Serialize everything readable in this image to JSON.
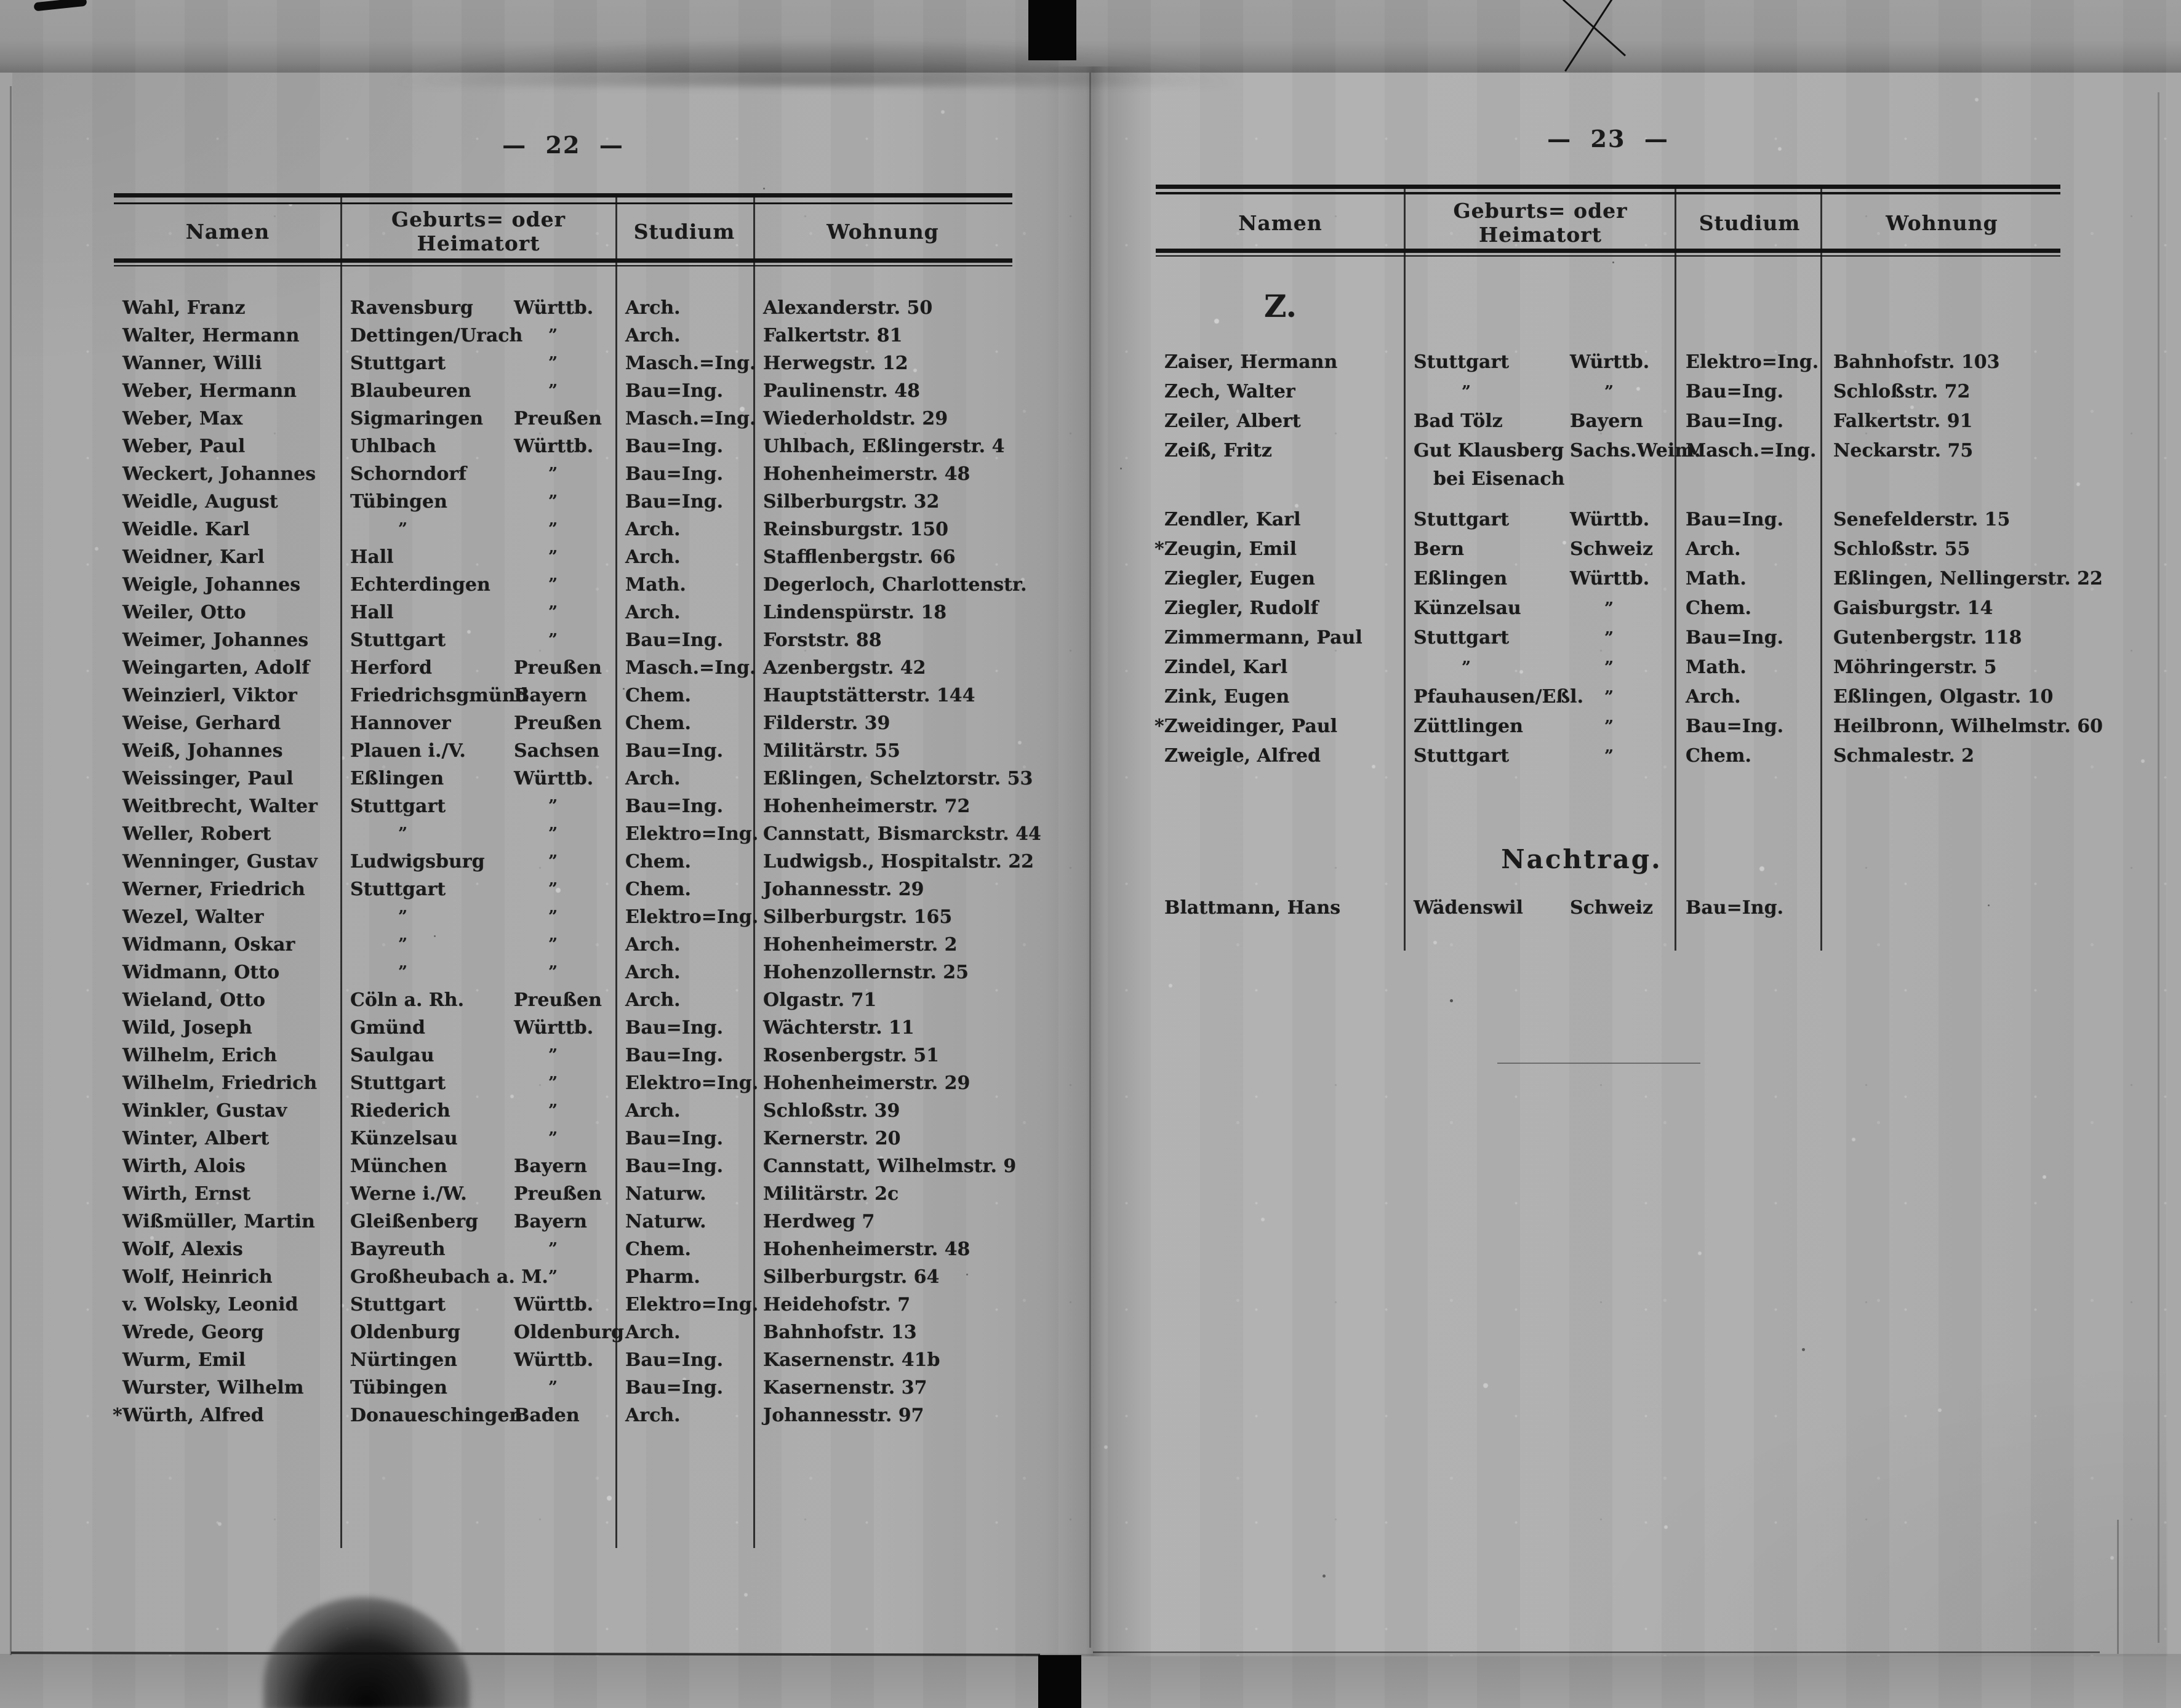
{
  "colors": {
    "page_background": "#adadad",
    "film_edge": "#8f8f8f",
    "ink": "#1a1a1a",
    "artifact_black": "#060606"
  },
  "page_left": {
    "page_number": "22",
    "page_number_display": "—  22  —",
    "columns": [
      "Namen",
      "Geburts= oder Heimatort",
      "Studium",
      "Wohnung"
    ],
    "rows": [
      {
        "name": "Wahl, Franz",
        "city": "Ravensburg",
        "state": "Württb.",
        "study": "Arch.",
        "address": "Alexanderstr. 50"
      },
      {
        "name": "Walter, Hermann",
        "city": "Dettingen/Urach",
        "state": "”",
        "study": "Arch.",
        "address": "Falkertstr. 81"
      },
      {
        "name": "Wanner, Willi",
        "city": "Stuttgart",
        "state": "”",
        "study": "Masch.=Ing.",
        "address": "Herwegstr. 12"
      },
      {
        "name": "Weber, Hermann",
        "city": "Blaubeuren",
        "state": "”",
        "study": "Bau=Ing.",
        "address": "Paulinenstr. 48"
      },
      {
        "name": "Weber, Max",
        "city": "Sigmaringen",
        "state": "Preußen",
        "study": "Masch.=Ing.",
        "address": "Wiederholdstr. 29"
      },
      {
        "name": "Weber, Paul",
        "city": "Uhlbach",
        "state": "Württb.",
        "study": "Bau=Ing.",
        "address": "Uhlbach, Eßlingerstr. 4"
      },
      {
        "name": "Weckert, Johannes",
        "city": "Schorndorf",
        "state": "”",
        "study": "Bau=Ing.",
        "address": "Hohenheimerstr. 48"
      },
      {
        "name": "Weidle, August",
        "city": "Tübingen",
        "state": "”",
        "study": "Bau=Ing.",
        "address": "Silberburgstr. 32"
      },
      {
        "name": "Weidle. Karl",
        "city": "”",
        "state": "”",
        "study": "Arch.",
        "address": "Reinsburgstr. 150"
      },
      {
        "name": "Weidner, Karl",
        "city": "Hall",
        "state": "”",
        "study": "Arch.",
        "address": "Stafflenbergstr. 66"
      },
      {
        "name": "Weigle, Johannes",
        "city": "Echterdingen",
        "state": "”",
        "study": "Math.",
        "address": "Degerloch, Charlottenstr."
      },
      {
        "name": "Weiler, Otto",
        "city": "Hall",
        "state": "”",
        "study": "Arch.",
        "address": "Lindenspürstr. 18"
      },
      {
        "name": "Weimer, Johannes",
        "city": "Stuttgart",
        "state": "”",
        "study": "Bau=Ing.",
        "address": "Forststr. 88"
      },
      {
        "name": "Weingarten, Adolf",
        "city": "Herford",
        "state": "Preußen",
        "study": "Masch.=Ing.",
        "address": "Azenbergstr. 42"
      },
      {
        "name": "Weinzierl, Viktor",
        "city": "Friedrichsgmünd",
        "state": "Bayern",
        "study": "Chem.",
        "address": "Hauptstätterstr. 144"
      },
      {
        "name": "Weise, Gerhard",
        "city": "Hannover",
        "state": "Preußen",
        "study": "Chem.",
        "address": "Filderstr. 39"
      },
      {
        "name": "Weiß, Johannes",
        "city": "Plauen i./V.",
        "state": "Sachsen",
        "study": "Bau=Ing.",
        "address": "Militärstr. 55"
      },
      {
        "name": "Weissinger, Paul",
        "city": "Eßlingen",
        "state": "Württb.",
        "study": "Arch.",
        "address": "Eßlingen, Schelztorstr. 53"
      },
      {
        "name": "Weitbrecht, Walter",
        "city": "Stuttgart",
        "state": "”",
        "study": "Bau=Ing.",
        "address": "Hohenheimerstr. 72"
      },
      {
        "name": "Weller, Robert",
        "city": "”",
        "state": "”",
        "study": "Elektro=Ing.",
        "address": "Cannstatt, Bismarckstr. 44"
      },
      {
        "name": "Wenninger, Gustav",
        "city": "Ludwigsburg",
        "state": "”",
        "study": "Chem.",
        "address": "Ludwigsb., Hospitalstr. 22"
      },
      {
        "name": "Werner, Friedrich",
        "city": "Stuttgart",
        "state": "”",
        "study": "Chem.",
        "address": "Johannesstr. 29"
      },
      {
        "name": "Wezel, Walter",
        "city": "”",
        "state": "”",
        "study": "Elektro=Ing.",
        "address": "Silberburgstr. 165"
      },
      {
        "name": "Widmann, Oskar",
        "city": "”",
        "state": "”",
        "study": "Arch.",
        "address": "Hohenheimerstr. 2"
      },
      {
        "name": "Widmann, Otto",
        "city": "”",
        "state": "”",
        "study": "Arch.",
        "address": "Hohenzollernstr. 25"
      },
      {
        "name": "Wieland, Otto",
        "city": "Cöln a. Rh.",
        "state": "Preußen",
        "study": "Arch.",
        "address": "Olgastr. 71"
      },
      {
        "name": "Wild, Joseph",
        "city": "Gmünd",
        "state": "Württb.",
        "study": "Bau=Ing.",
        "address": "Wächterstr. 11"
      },
      {
        "name": "Wilhelm, Erich",
        "city": "Saulgau",
        "state": "”",
        "study": "Bau=Ing.",
        "address": "Rosenbergstr. 51"
      },
      {
        "name": "Wilhelm, Friedrich",
        "city": "Stuttgart",
        "state": "”",
        "study": "Elektro=Ing.",
        "address": "Hohenheimerstr. 29"
      },
      {
        "name": "Winkler, Gustav",
        "city": "Riederich",
        "state": "”",
        "study": "Arch.",
        "address": "Schloßstr. 39"
      },
      {
        "name": "Winter, Albert",
        "city": "Künzelsau",
        "state": "”",
        "study": "Bau=Ing.",
        "address": "Kernerstr. 20"
      },
      {
        "name": "Wirth, Alois",
        "city": "München",
        "state": "Bayern",
        "study": "Bau=Ing.",
        "address": "Cannstatt, Wilhelmstr. 9"
      },
      {
        "name": "Wirth, Ernst",
        "city": "Werne i./W.",
        "state": "Preußen",
        "study": "Naturw.",
        "address": "Militärstr. 2c"
      },
      {
        "name": "Wißmüller, Martin",
        "city": "Gleißenberg",
        "state": "Bayern",
        "study": "Naturw.",
        "address": "Herdweg 7"
      },
      {
        "name": "Wolf, Alexis",
        "city": "Bayreuth",
        "state": "”",
        "study": "Chem.",
        "address": "Hohenheimerstr. 48"
      },
      {
        "name": "Wolf, Heinrich",
        "city": "Großheubach a. M.",
        "state": "”",
        "study": "Pharm.",
        "address": "Silberburgstr. 64"
      },
      {
        "name": "v. Wolsky, Leonid",
        "city": "Stuttgart",
        "state": "Württb.",
        "study": "Elektro=Ing.",
        "address": "Heidehofstr. 7"
      },
      {
        "name": "Wrede, Georg",
        "city": "Oldenburg",
        "state": "Oldenburg",
        "study": "Arch.",
        "address": "Bahnhofstr. 13"
      },
      {
        "name": "Wurm, Emil",
        "city": "Nürtingen",
        "state": "Württb.",
        "study": "Bau=Ing.",
        "address": "Kasernenstr. 41b"
      },
      {
        "name": "Wurster, Wilhelm",
        "city": "Tübingen",
        "state": "”",
        "study": "Bau=Ing.",
        "address": "Kasernenstr. 37"
      },
      {
        "name": "*Würth, Alfred",
        "city": "Donaueschingen",
        "state": "Baden",
        "study": "Arch.",
        "address": "Johannesstr. 97"
      }
    ]
  },
  "page_right": {
    "page_number": "23",
    "page_number_display": "—  23  —",
    "columns": [
      "Namen",
      "Geburts= oder Heimatort",
      "Studium",
      "Wohnung"
    ],
    "section_letter": "Z.",
    "rows": [
      {
        "name": "Zaiser, Hermann",
        "city": "Stuttgart",
        "state": "Württb.",
        "study": "Elektro=Ing.",
        "address": "Bahnhofstr. 103"
      },
      {
        "name": "Zech, Walter",
        "city": "”",
        "state": "”",
        "study": "Bau=Ing.",
        "address": "Schloßstr. 72"
      },
      {
        "name": "Zeiler, Albert",
        "city": "Bad Tölz",
        "state": "Bayern",
        "study": "Bau=Ing.",
        "address": "Falkertstr. 91"
      },
      {
        "name": "Zeiß, Fritz",
        "city": "Gut Klausberg",
        "city2": "bei Eisenach",
        "state": "Sachs.Weim.",
        "study": "Masch.=Ing.",
        "address": "Neckarstr. 75"
      },
      {
        "name": "Zendler, Karl",
        "city": "Stuttgart",
        "state": "Württb.",
        "study": "Bau=Ing.",
        "address": "Senefelderstr. 15"
      },
      {
        "name": "*Zeugin, Emil",
        "city": "Bern",
        "state": "Schweiz",
        "study": "Arch.",
        "address": "Schloßstr. 55"
      },
      {
        "name": "Ziegler, Eugen",
        "city": "Eßlingen",
        "state": "Württb.",
        "study": "Math.",
        "address": "Eßlingen, Nellingerstr. 22"
      },
      {
        "name": "Ziegler, Rudolf",
        "city": "Künzelsau",
        "state": "”",
        "study": "Chem.",
        "address": "Gaisburgstr. 14"
      },
      {
        "name": "Zimmermann, Paul",
        "city": "Stuttgart",
        "state": "”",
        "study": "Bau=Ing.",
        "address": "Gutenbergstr. 118"
      },
      {
        "name": "Zindel, Karl",
        "city": "”",
        "state": "”",
        "study": "Math.",
        "address": "Möhringerstr. 5"
      },
      {
        "name": "Zink, Eugen",
        "city": "Pfauhausen/Eßl.",
        "state": "”",
        "study": "Arch.",
        "address": "Eßlingen, Olgastr. 10"
      },
      {
        "name": "*Zweidinger, Paul",
        "city": "Züttlingen",
        "state": "”",
        "study": "Bau=Ing.",
        "address": "Heilbronn, Wilhelmstr. 60"
      },
      {
        "name": "Zweigle, Alfred",
        "city": "Stuttgart",
        "state": "”",
        "study": "Chem.",
        "address": "Schmalestr. 2"
      }
    ],
    "nachtrag": {
      "title": "Nachtrag.",
      "rows": [
        {
          "name": "Blattmann, Hans",
          "city": "Wädenswil",
          "state": "Schweiz",
          "study": "Bau=Ing.",
          "address": ""
        }
      ]
    }
  }
}
